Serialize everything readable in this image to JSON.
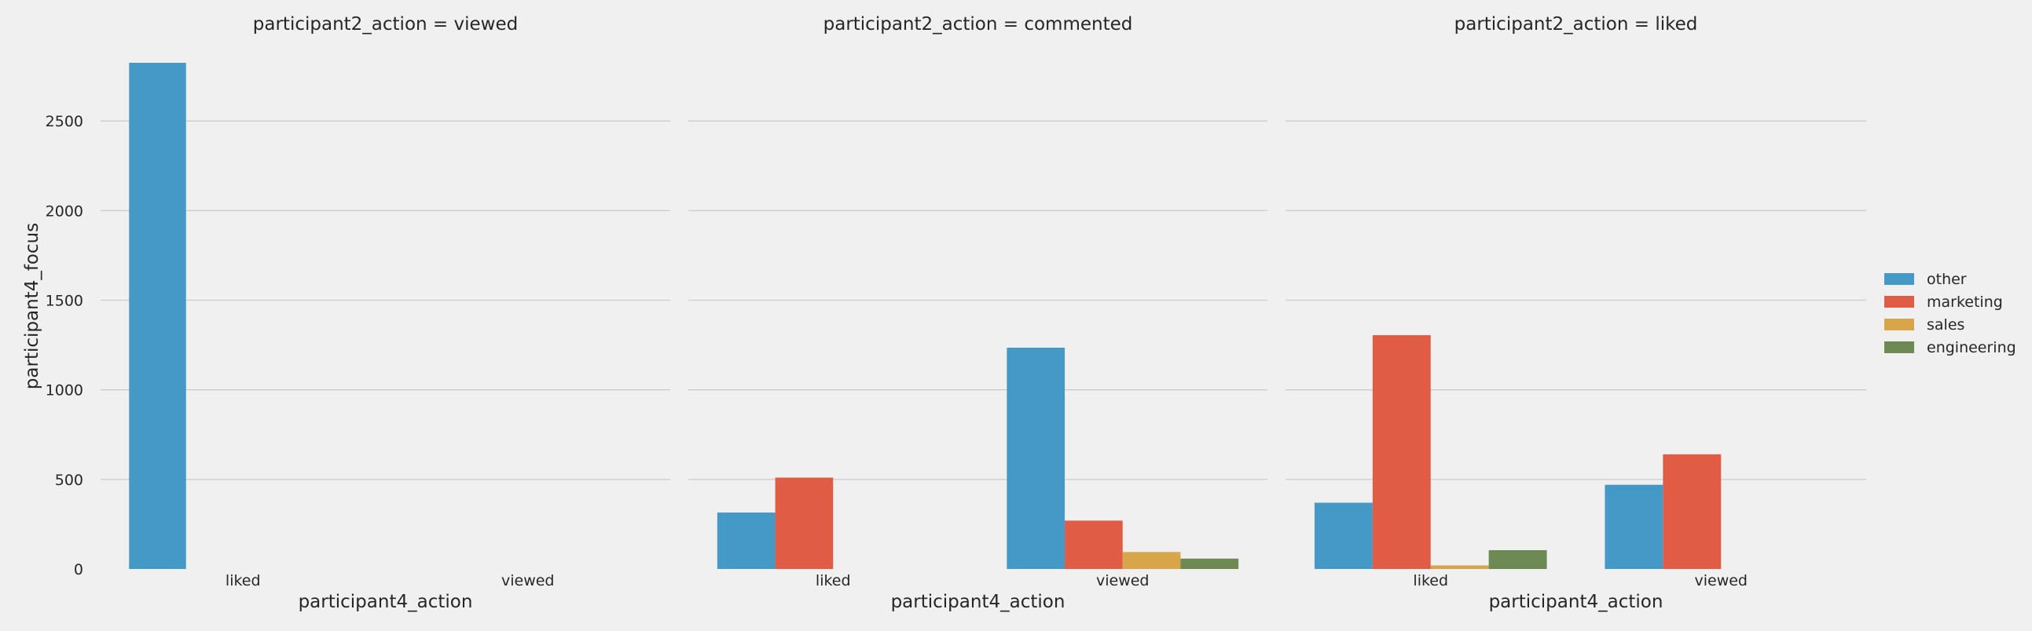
{
  "chart_data": {
    "type": "bar",
    "layout": "faceted",
    "facets": [
      {
        "title": "participant2_action = viewed",
        "categories": [
          "liked",
          "viewed"
        ],
        "series": [
          {
            "name": "other",
            "values": [
              2825,
              null
            ]
          },
          {
            "name": "marketing",
            "values": [
              null,
              null
            ]
          },
          {
            "name": "sales",
            "values": [
              null,
              null
            ]
          },
          {
            "name": "engineering",
            "values": [
              null,
              null
            ]
          }
        ]
      },
      {
        "title": "participant2_action = commented",
        "categories": [
          "liked",
          "viewed"
        ],
        "series": [
          {
            "name": "other",
            "values": [
              315,
              1235
            ]
          },
          {
            "name": "marketing",
            "values": [
              510,
              270
            ]
          },
          {
            "name": "sales",
            "values": [
              null,
              95
            ]
          },
          {
            "name": "engineering",
            "values": [
              null,
              58
            ]
          }
        ]
      },
      {
        "title": "participant2_action = liked",
        "categories": [
          "liked",
          "viewed"
        ],
        "series": [
          {
            "name": "other",
            "values": [
              370,
              470
            ]
          },
          {
            "name": "marketing",
            "values": [
              1305,
              640
            ]
          },
          {
            "name": "sales",
            "values": [
              20,
              null
            ]
          },
          {
            "name": "engineering",
            "values": [
              105,
              null
            ]
          }
        ]
      }
    ],
    "xlabel": "participant4_action",
    "ylabel": "participant4_focus",
    "ylim": [
      0,
      2825
    ],
    "yticks": [
      0,
      500,
      1000,
      1500,
      2000,
      2500
    ],
    "legend": {
      "placement": "right",
      "entries": [
        "other",
        "marketing",
        "sales",
        "engineering"
      ]
    },
    "colors": {
      "other": "#4599c7",
      "marketing": "#e05c44",
      "sales": "#d8a54a",
      "engineering": "#6d8a55"
    },
    "grid": "horizontal",
    "background": "#f0f0f0"
  }
}
